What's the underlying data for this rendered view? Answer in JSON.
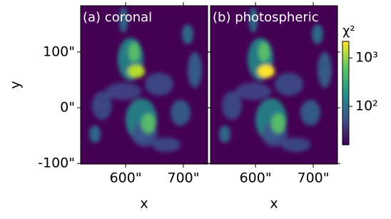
{
  "chart_data": [
    {
      "type": "heatmap",
      "title": "(a) coronal",
      "xlabel": "x",
      "ylabel": "y",
      "xlim": [
        522,
        742
      ],
      "xticks": [
        {
          "value": 600,
          "label": "600\""
        },
        {
          "value": 700,
          "label": "700\""
        }
      ],
      "ylim": [
        -101,
        183
      ],
      "yticks": [
        {
          "value": 100,
          "label": "100\""
        },
        {
          "value": 0,
          "label": "0\""
        },
        {
          "value": -100,
          "label": "-100\""
        }
      ]
    },
    {
      "type": "heatmap",
      "title": "(b) photospheric",
      "xlabel": "x",
      "sharey": true,
      "xlim": [
        522,
        742
      ],
      "xticks": [
        {
          "value": 600,
          "label": "600\""
        },
        {
          "value": 700,
          "label": "700\""
        }
      ]
    }
  ],
  "colorbar": {
    "label": "χ²",
    "scale": "log",
    "lim": [
      16,
      2200
    ],
    "colormap": "viridis",
    "ticks": [
      {
        "value": 100,
        "label": "10²"
      },
      {
        "value": 1000,
        "label": "10³"
      }
    ]
  }
}
